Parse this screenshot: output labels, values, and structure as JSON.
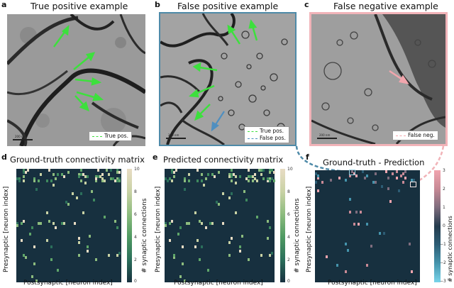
{
  "panels": {
    "a": {
      "letter": "a",
      "title": "True positive example",
      "legend": [
        "True pos."
      ],
      "scale": "200 nm"
    },
    "b": {
      "letter": "b",
      "title": "False positive example",
      "legend": [
        "True pos.",
        "False pos."
      ],
      "scale": "200 nm"
    },
    "c": {
      "letter": "c",
      "title": "False negative example",
      "legend": [
        "False neg."
      ],
      "scale": "200 nm"
    },
    "d": {
      "letter": "d",
      "title": "Ground-truth connectivity matrix",
      "xlabel": "Postsynaptic [neuron index]",
      "ylabel": "Presynaptic [neuron index]",
      "cbar_label": "# synaptic connections",
      "cbar_ticks": [
        "10",
        "8",
        "6",
        "4",
        "2",
        "0"
      ]
    },
    "e": {
      "letter": "e",
      "title": "Predicted connectivity matrix",
      "xlabel": "Postsynaptic [neuron index]",
      "ylabel": "Presynaptic [neuron index]",
      "cbar_label": "# synaptic connections",
      "cbar_ticks": [
        "10",
        "8",
        "6",
        "4",
        "2",
        "0"
      ]
    },
    "f": {
      "letter": "f",
      "title": "Ground-truth - Prediction",
      "xlabel": "Postsynaptic [neuron index]",
      "ylabel": "Presynaptic [neuron index]",
      "cbar_label": "# synaptic connections",
      "cbar_ticks": [
        "3",
        "2",
        "1",
        "0",
        "−1",
        "−2",
        "−3"
      ]
    }
  },
  "colors": {
    "true_pos": "#3de03d",
    "false_pos": "#4f8fc0",
    "false_neg": "#f2a6ad",
    "frame_b": "#4e8aa8",
    "frame_c": "#f1b3b8",
    "matrix_bg": "#17303f"
  }
}
